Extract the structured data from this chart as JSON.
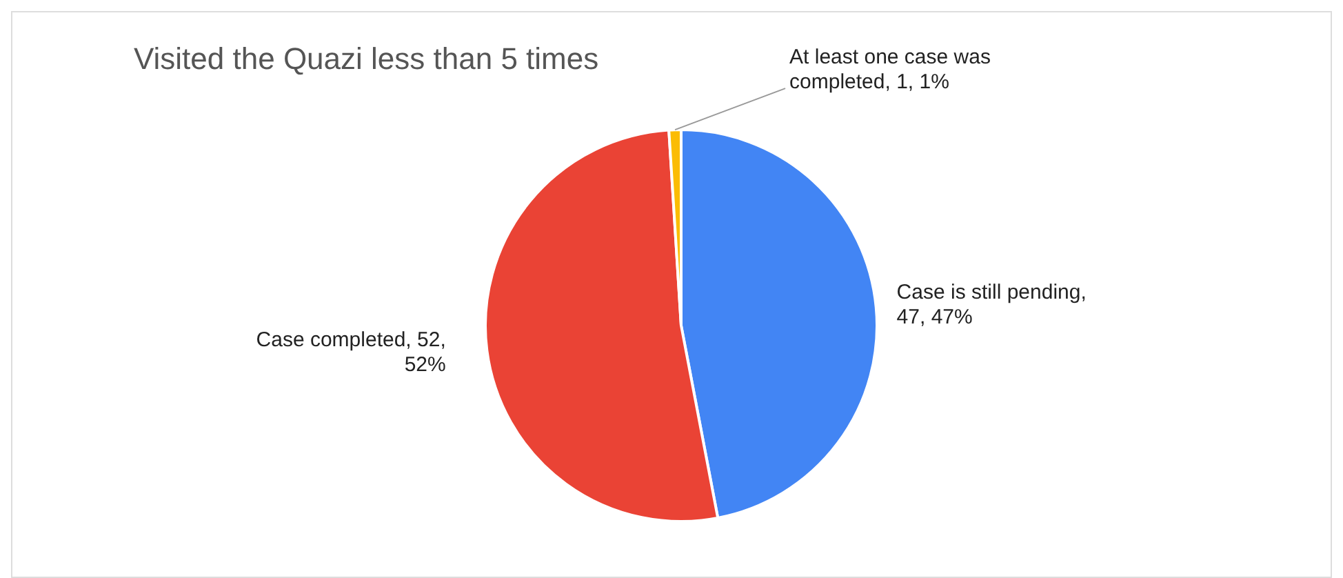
{
  "chart_data": {
    "type": "pie",
    "title": "Visited the Quazi less than 5 times",
    "categories": [
      "Case is still pending",
      "Case completed",
      "At least one case was completed"
    ],
    "values": [
      47,
      52,
      1
    ],
    "value_labels": [
      ", 47, 47%",
      ", 52, 52%",
      ", 1, 1%"
    ],
    "colors": [
      "#4285f4",
      "#ea4335",
      "#fbbc04"
    ],
    "legend": false
  }
}
